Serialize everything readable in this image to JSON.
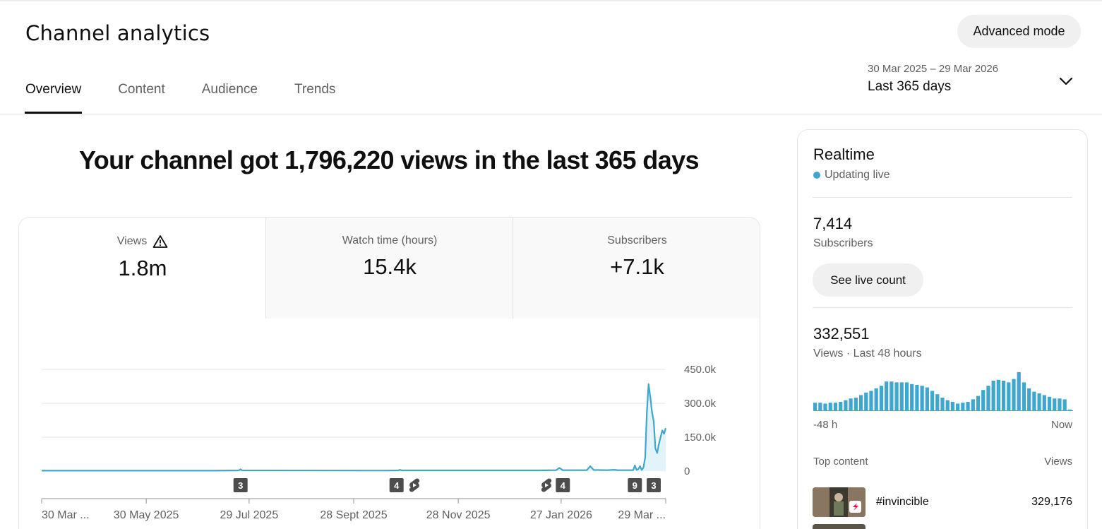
{
  "header": {
    "title": "Channel analytics",
    "advanced_mode_label": "Advanced mode",
    "tabs": [
      {
        "label": "Overview",
        "active": true
      },
      {
        "label": "Content",
        "active": false
      },
      {
        "label": "Audience",
        "active": false
      },
      {
        "label": "Trends",
        "active": false
      }
    ],
    "date_range": {
      "dates": "30 Mar 2025 – 29 Mar 2026",
      "label": "Last 365 days"
    }
  },
  "headline": "Your channel got 1,796,220 views in the last 365 days",
  "metrics": [
    {
      "label": "Views",
      "value": "1.8m",
      "warning_icon": "warning-triangle-icon",
      "active": true
    },
    {
      "label": "Watch time (hours)",
      "value": "15.4k",
      "active": false
    },
    {
      "label": "Subscribers",
      "value": "+7.1k",
      "active": false
    }
  ],
  "chart_data": {
    "type": "area",
    "title": "",
    "xlabel": "",
    "ylabel": "",
    "ylim": [
      0,
      450000
    ],
    "y_ticks": [
      "450.0k",
      "300.0k",
      "150.0k",
      "0"
    ],
    "y_tick_values": [
      450000,
      300000,
      150000,
      0
    ],
    "x_ticks": [
      "30 Mar ...",
      "30 May 2025",
      "29 Jul 2025",
      "28 Sept 2025",
      "28 Nov 2025",
      "27 Jan 2026",
      "29 Mar ..."
    ],
    "x_tick_days": [
      0,
      61,
      121,
      182,
      243,
      303,
      364
    ],
    "x_days": 365,
    "color": "#3ea6cf",
    "grid": true,
    "series": [
      {
        "points": [
          [
            0,
            2000
          ],
          [
            100,
            2000
          ],
          [
            115,
            3000
          ],
          [
            116,
            8000
          ],
          [
            117,
            3000
          ],
          [
            200,
            2500
          ],
          [
            208,
            3000
          ],
          [
            209,
            6000
          ],
          [
            210,
            3000
          ],
          [
            290,
            3000
          ],
          [
            300,
            4000
          ],
          [
            302,
            14000
          ],
          [
            304,
            4000
          ],
          [
            318,
            4000
          ],
          [
            320,
            22000
          ],
          [
            322,
            5000
          ],
          [
            330,
            4000
          ],
          [
            334,
            6000
          ],
          [
            336,
            4000
          ],
          [
            345,
            4000
          ],
          [
            346,
            25000
          ],
          [
            347,
            5000
          ],
          [
            348,
            8000
          ],
          [
            349,
            22000
          ],
          [
            350,
            5000
          ],
          [
            351,
            15000
          ],
          [
            352,
            60000
          ],
          [
            353,
            260000
          ],
          [
            354,
            385000
          ],
          [
            355,
            330000
          ],
          [
            356,
            260000
          ],
          [
            357,
            220000
          ],
          [
            358,
            100000
          ],
          [
            359,
            80000
          ],
          [
            360,
            120000
          ],
          [
            361,
            150000
          ],
          [
            362,
            180000
          ],
          [
            363,
            165000
          ],
          [
            364,
            190000
          ]
        ]
      }
    ],
    "markers": [
      {
        "day": 116,
        "label": "3",
        "kind": "count"
      },
      {
        "day": 207,
        "label": "4",
        "kind": "count"
      },
      {
        "day": 217,
        "label": "",
        "kind": "shorts-icon"
      },
      {
        "day": 294,
        "label": "",
        "kind": "shorts-icon"
      },
      {
        "day": 304,
        "label": "4",
        "kind": "count"
      },
      {
        "day": 346,
        "label": "9",
        "kind": "count"
      },
      {
        "day": 357,
        "label": "3",
        "kind": "count"
      }
    ]
  },
  "realtime": {
    "title": "Realtime",
    "status": "Updating live",
    "subscribers_value": "7,414",
    "subscribers_label": "Subscribers",
    "live_count_label": "See live count",
    "views_value": "332,551",
    "views_label": "Views · Last 48 hours",
    "axis_start": "-48 h",
    "axis_end": "Now",
    "chart_data": {
      "type": "bar",
      "title": "",
      "ylim": [
        0,
        100
      ],
      "values": [
        18,
        18,
        16,
        18,
        18,
        20,
        24,
        28,
        30,
        36,
        42,
        46,
        52,
        58,
        68,
        68,
        66,
        66,
        66,
        62,
        60,
        58,
        54,
        46,
        38,
        30,
        24,
        20,
        16,
        18,
        20,
        26,
        34,
        48,
        58,
        70,
        72,
        70,
        66,
        74,
        90,
        66,
        52,
        44,
        40,
        36,
        32,
        28,
        28,
        26,
        2
      ]
    },
    "top_content_label": "Top content",
    "top_content_views_label": "Views",
    "top_content": [
      {
        "title": "#invincible",
        "views": "329,176"
      }
    ]
  }
}
